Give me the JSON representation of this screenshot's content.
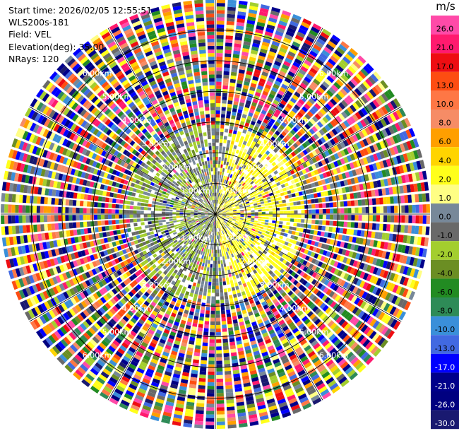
{
  "header": {
    "start_time": "Start time: 2026/02/05 12:55:51",
    "instrument": "WLS200s-181",
    "field": "Field: VEL",
    "elevation": "Elevation(deg): 35.00",
    "nrays": "NRays: 120"
  },
  "colorbar": {
    "unit": "m/s",
    "bins": [
      {
        "label": "26.0",
        "color": "#ff4aa8"
      },
      {
        "label": "21.0",
        "color": "#ff1a6e"
      },
      {
        "label": "17.0",
        "color": "#ee0d12"
      },
      {
        "label": "13.0",
        "color": "#fd4d12"
      },
      {
        "label": "10.0",
        "color": "#fe7745"
      },
      {
        "label": "8.0",
        "color": "#f68c66"
      },
      {
        "label": "6.0",
        "color": "#ff9f00"
      },
      {
        "label": "4.0",
        "color": "#ffd400"
      },
      {
        "label": "2.0",
        "color": "#ffff1a"
      },
      {
        "label": "1.0",
        "color": "#fffe84"
      },
      {
        "label": "0.0",
        "color": "#778899"
      },
      {
        "label": "-1.0",
        "color": "#696969"
      },
      {
        "label": "-2.0",
        "color": "#a3ce2e"
      },
      {
        "label": "-4.0",
        "color": "#6b8e23"
      },
      {
        "label": "-6.0",
        "color": "#228b22"
      },
      {
        "label": "-8.0",
        "color": "#2e8b57"
      },
      {
        "label": "-10.0",
        "color": "#3a8fd9"
      },
      {
        "label": "-13.0",
        "color": "#4169e1"
      },
      {
        "label": "-17.0",
        "color": "#0000ff"
      },
      {
        "label": "-21.0",
        "color": "#00008b"
      },
      {
        "label": "-26.0",
        "color": "#000080"
      },
      {
        "label": "-30.0",
        "color": "#191970"
      }
    ]
  },
  "chart_data": {
    "type": "heatmap",
    "projection": "polar-ppi",
    "field": "VEL",
    "elevation_deg": 35.0,
    "n_rays": 120,
    "max_range_km": 7.0,
    "range_rings_km": [
      1.0,
      2.0,
      3.0,
      4.0,
      5.0,
      6.0
    ],
    "ring_labels": [
      "1.00km",
      "2.00km",
      "3.00km",
      "4.00km",
      "5.00km",
      "6.00km"
    ],
    "ring_label_bearings_deg": [
      40,
      140,
      220,
      320
    ],
    "azimuth_lines_deg": [
      0,
      30,
      60,
      90,
      120,
      150,
      180,
      210,
      240,
      270,
      300,
      330
    ],
    "grid": true,
    "gate_count": 60,
    "near_field_km": 3.0,
    "near_field_pattern": {
      "east_sector": "yellow/light, 0 to +4 m/s",
      "west_sector": "gray/olive, 0 to -4 m/s"
    },
    "far_field_pattern": "noisy, full palette from -30 to +26 m/s"
  }
}
